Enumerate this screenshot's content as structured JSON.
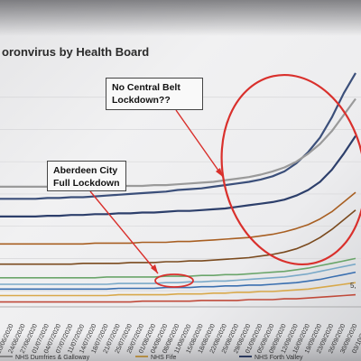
{
  "chart_title": "oronvirus by Health Board",
  "annotations": {
    "central_belt": [
      "No Central Belt",
      "Lockdown??"
    ],
    "aberdeen": [
      "Aberdeen City",
      "Full Lockdown"
    ]
  },
  "colors": {
    "annotation_red": "#d9302c",
    "series_top": "#3b4f7a",
    "series_grey": "#9a9a9a",
    "series_navy": "#2d3f6b",
    "series_brown1": "#7a4a1e",
    "series_brown2": "#a85f22",
    "series_gold": "#d8a84a",
    "series_green": "#6aa56a",
    "series_teal": "#7aa9c8",
    "series_blue": "#3a6fb0",
    "series_red": "#c04a3a"
  },
  "chart_data": {
    "type": "line",
    "title": "oronvirus by Health Board",
    "x": [
      "20/06/2020",
      "24/06/2020",
      "27/06/2020",
      "01/07/2020",
      "04/07/2020",
      "07/07/2020",
      "11/07/2020",
      "14/07/2020",
      "18/07/2020",
      "21/07/2020",
      "25/07/2020",
      "28/07/2020",
      "01/08/2020",
      "04/08/2020",
      "08/08/2020",
      "11/08/2020",
      "15/08/2020",
      "18/08/2020",
      "22/08/2020",
      "25/08/2020",
      "29/08/2020",
      "01/09/2020",
      "05/09/2020",
      "09/09/2020",
      "12/09/2020",
      "16/09/2020",
      "19/09/2020",
      "23/09/2020",
      "26/09/2020",
      "30/09/2020",
      "03/10/2020"
    ],
    "x_tick_labels": [
      "20/06/2020",
      "24/06/2020",
      "27/06/2020",
      "01/07/2020",
      "04/07/2020",
      "07/07/2020",
      "11/07/2020",
      "14/07/2020",
      "18/07/2020",
      "21/07/2020",
      "25/07/2020",
      "28/07/2020",
      "01/08/2020",
      "04/08/2020",
      "08/08/2020",
      "11/08/2020",
      "15/08/2020",
      "18/08/2020",
      "22/08/2020",
      "25/08/2020",
      "29/08/2020",
      "01/09/2020",
      "05/09/2020",
      "09/09/2020",
      "12/09/2020",
      "16/09/2020",
      "19/09/2020",
      "23/09/2020",
      "26/09/2020",
      "30/09/2020",
      "03/10/2020"
    ],
    "y_tick_labels": [
      "5,"
    ],
    "grid": true,
    "legend": [
      "NHS Dumfries & Galloway",
      "NHS Fife",
      "NHS Forth Valley"
    ],
    "series": [
      {
        "color": "#3b4f7a",
        "values": [
          214,
          214,
          214,
          214,
          215,
          215,
          216,
          216,
          217,
          218,
          219,
          220,
          221,
          222,
          223,
          225,
          226,
          227,
          229,
          231,
          233,
          235,
          238,
          242,
          248,
          258,
          272,
          290,
          315,
          345,
          370
        ]
      },
      {
        "color": "#9a9a9a",
        "values": [
          229,
          229,
          229,
          229,
          229,
          229,
          229,
          229,
          229,
          230,
          230,
          230,
          230,
          231,
          231,
          232,
          233,
          234,
          235,
          237,
          239,
          241,
          244,
          248,
          253,
          260,
          270,
          282,
          298,
          318,
          338
        ]
      },
      {
        "color": "#2d3f6b",
        "values": [
          192,
          192,
          192,
          192,
          193,
          193,
          194,
          194,
          195,
          195,
          196,
          196,
          197,
          197,
          198,
          199,
          199,
          200,
          201,
          202,
          204,
          206,
          208,
          210,
          213,
          218,
          225,
          235,
          250,
          270,
          292
        ]
      },
      {
        "color": "#a85f22",
        "values": [
          158,
          158,
          158,
          158,
          158,
          158,
          158,
          158,
          159,
          159,
          159,
          159,
          160,
          160,
          160,
          161,
          161,
          162,
          163,
          164,
          165,
          166,
          168,
          170,
          173,
          177,
          182,
          189,
          198,
          210,
          222
        ]
      },
      {
        "color": "#7a4a1e",
        "values": [
          133,
          133,
          133,
          133,
          133,
          133,
          133,
          134,
          134,
          134,
          134,
          135,
          135,
          135,
          136,
          136,
          137,
          137,
          138,
          139,
          140,
          141,
          143,
          145,
          148,
          152,
          158,
          166,
          176,
          188,
          200
        ]
      },
      {
        "color": "#6aa56a",
        "values": [
          116,
          116,
          116,
          116,
          116,
          116,
          116,
          116,
          116,
          117,
          117,
          117,
          117,
          117,
          118,
          118,
          118,
          119,
          119,
          120,
          120,
          121,
          122,
          123,
          124,
          126,
          128,
          131,
          134,
          137,
          140
        ]
      },
      {
        "color": "#7aa9c8",
        "values": [
          108,
          108,
          108,
          108,
          108,
          108,
          108,
          108,
          108,
          108,
          109,
          109,
          109,
          109,
          110,
          110,
          111,
          111,
          112,
          112,
          113,
          114,
          115,
          116,
          117,
          119,
          121,
          124,
          127,
          130,
          133
        ]
      },
      {
        "color": "#3a6fb0",
        "values": [
          102,
          102,
          102,
          102,
          102,
          102,
          102,
          102,
          102,
          102,
          103,
          103,
          103,
          103,
          104,
          104,
          104,
          105,
          105,
          106,
          106,
          107,
          107,
          108,
          109,
          110,
          112,
          114,
          117,
          120,
          123
        ]
      },
      {
        "color": "#d8a84a",
        "values": [
          94,
          94,
          94,
          94,
          94,
          94,
          94,
          94,
          94,
          94,
          95,
          95,
          95,
          95,
          95,
          96,
          96,
          96,
          97,
          97,
          98,
          98,
          99,
          99,
          100,
          101,
          102,
          104,
          106,
          108,
          110
        ]
      },
      {
        "color": "#c04a3a",
        "values": [
          86,
          86,
          86,
          86,
          86,
          86,
          86,
          86,
          86,
          86,
          86,
          86,
          87,
          87,
          87,
          87,
          87,
          88,
          88,
          88,
          88,
          89,
          89,
          89,
          90,
          90,
          91,
          92,
          93,
          94,
          95
        ]
      }
    ]
  }
}
